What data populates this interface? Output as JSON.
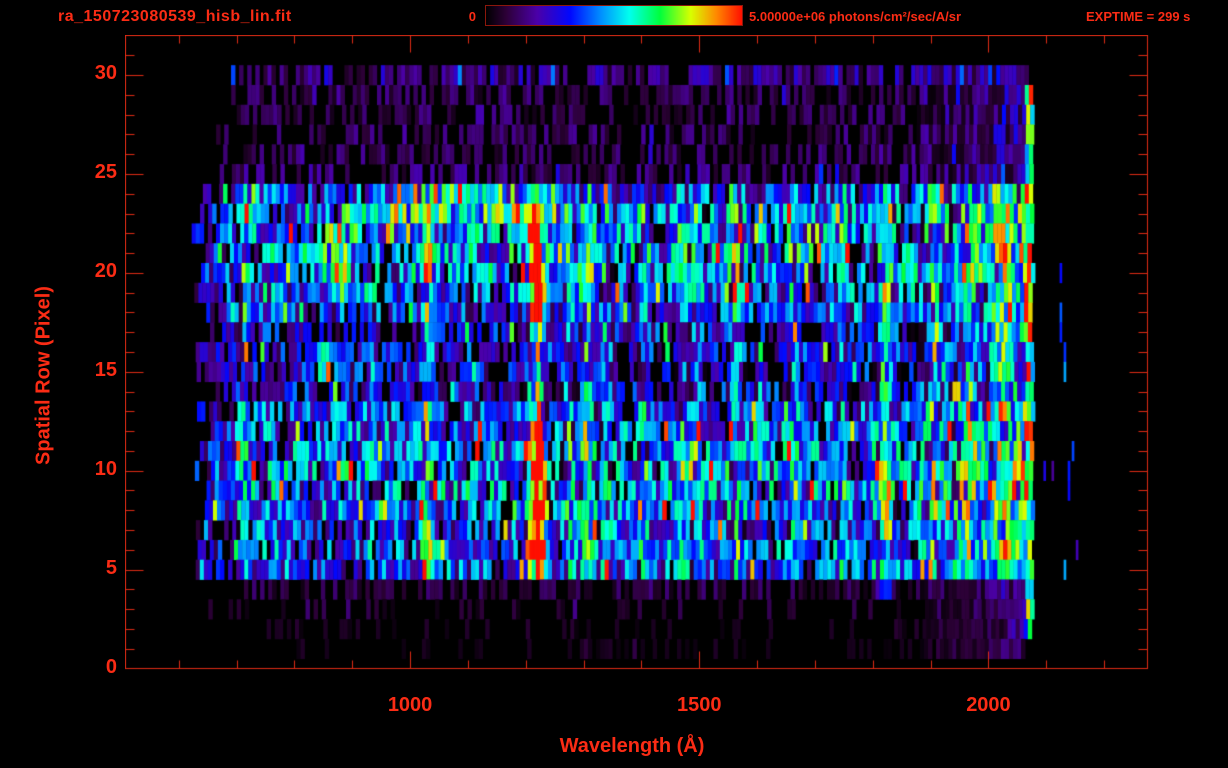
{
  "header": {
    "file_title": "ra_150723080539_hisb_lin.fit",
    "colorbar_min_label": "0",
    "colorbar_max_label": "5.00000e+06 photons/cm²/sec/A/sr",
    "exptime_label": "EXPTIME = 299 s"
  },
  "colors": {
    "text": "#fb2c15",
    "frame": "#e02b14",
    "background": "#000000",
    "colorbar_border": "#8c170c"
  },
  "chart_data": {
    "type": "heatmap",
    "title": "ra_150723080539_hisb_lin.fit",
    "xlabel": "Wavelength (Å)",
    "ylabel": "Spatial Row (Pixel)",
    "xlim": [
      508,
      2275
    ],
    "ylim": [
      0,
      32
    ],
    "x_major_ticks": [
      1000,
      1500,
      2000
    ],
    "x_tick_labels": [
      "1000",
      "1500",
      "2000"
    ],
    "x_minor_tick_step": 100,
    "x_minor_tick_range": [
      600,
      2200
    ],
    "y_major_ticks": [
      0,
      5,
      10,
      15,
      20,
      25,
      30
    ],
    "y_tick_labels": [
      "0",
      "5",
      "10",
      "15",
      "20",
      "25",
      "30"
    ],
    "y_minor_tick_step": 1,
    "grid": false,
    "legend": "none",
    "exposure_time_s": 299,
    "colorbar": {
      "min_value": 0,
      "max_value": 5000000,
      "min_label": "0",
      "max_label": "5.00000e+06",
      "units": "photons/cm²/sec/A/sr",
      "colormap_stops": [
        [
          0.0,
          "#000000"
        ],
        [
          0.08,
          "#2d0038"
        ],
        [
          0.2,
          "#4b00a8"
        ],
        [
          0.33,
          "#0008ff"
        ],
        [
          0.45,
          "#0090ff"
        ],
        [
          0.56,
          "#00ffee"
        ],
        [
          0.68,
          "#00ff3c"
        ],
        [
          0.8,
          "#d8ff00"
        ],
        [
          0.9,
          "#ff8800"
        ],
        [
          1.0,
          "#ff0f00"
        ]
      ]
    },
    "spatial_rows": {
      "count": 31,
      "data_rows": [
        1,
        30
      ],
      "bright_band_rows": [
        5,
        24
      ]
    },
    "wavelength_coverage": [
      620,
      2075
    ],
    "row_base_intensity": [
      0,
      0.03,
      0.04,
      0.06,
      0.08,
      0.3,
      0.33,
      0.3,
      0.35,
      0.37,
      0.38,
      0.36,
      0.33,
      0.3,
      0.24,
      0.24,
      0.26,
      0.24,
      0.28,
      0.33,
      0.37,
      0.37,
      0.35,
      0.33,
      0.3,
      0.12,
      0.1,
      0.1,
      0.095,
      0.095,
      0.15
    ],
    "emission_lines": [
      {
        "wl": 710,
        "sigma": 5,
        "strength": 0.18,
        "rows": [
          5,
          24
        ]
      },
      {
        "wl": 930,
        "sigma": 5,
        "strength": 0.15,
        "rows": [
          13,
          19
        ]
      },
      {
        "wl": 1026,
        "sigma": 7,
        "strength": 0.3,
        "rows": [
          5,
          23
        ]
      },
      {
        "wl": 1216,
        "sigma": 9,
        "strength": 0.92,
        "rows": [
          5,
          24
        ],
        "core_rows": [
          [
            6,
            12
          ],
          [
            18,
            23
          ]
        ],
        "wing_factor": 0.5
      },
      {
        "wl": 1270,
        "sigma": 6,
        "strength": 0.2,
        "rows": [
          5,
          24
        ]
      },
      {
        "wl": 1304,
        "sigma": 8,
        "strength": 0.32,
        "rows": [
          5,
          24
        ]
      },
      {
        "wl": 1335,
        "sigma": 5,
        "strength": 0.22,
        "rows": [
          5,
          24
        ]
      },
      {
        "wl": 1400,
        "sigma": 6,
        "strength": 0.16,
        "rows": [
          5,
          24
        ]
      },
      {
        "wl": 1470,
        "sigma": 6,
        "strength": 0.18,
        "rows": [
          5,
          24
        ]
      },
      {
        "wl": 1493,
        "sigma": 6,
        "strength": 0.22,
        "rows": [
          5,
          24
        ]
      },
      {
        "wl": 1561,
        "sigma": 7,
        "strength": 0.24,
        "rows": [
          5,
          24
        ]
      },
      {
        "wl": 1660,
        "sigma": 6,
        "strength": 0.16,
        "rows": [
          5,
          24
        ]
      },
      {
        "wl": 1745,
        "sigma": 6,
        "strength": 0.16,
        "rows": [
          5,
          24
        ]
      },
      {
        "wl": 1820,
        "sigma": 9,
        "strength": 0.34,
        "rows": [
          4,
          24
        ]
      },
      {
        "wl": 1900,
        "sigma": 8,
        "strength": 0.18,
        "rows": [
          5,
          24
        ]
      },
      {
        "wl": 1960,
        "sigma": 8,
        "strength": 0.2,
        "rows": [
          5,
          24
        ]
      },
      {
        "wl": 2020,
        "sigma": 8,
        "strength": 0.22,
        "rows": [
          5,
          24
        ]
      },
      {
        "wl": 2068,
        "sigma": 4.5,
        "strength": 0.85,
        "rows": [
          2,
          29
        ],
        "edge": true
      }
    ],
    "bright_region": {
      "wavelength_range": [
        1850,
        2063
      ],
      "max_boost": 0.22
    },
    "features": [
      {
        "row": 24,
        "wl_range": [
          1015,
          1205
        ],
        "boost": 0.22
      },
      {
        "row": 23,
        "wl_range": [
          868,
          1205
        ],
        "boost": 0.26
      },
      {
        "row": 22,
        "wl_range": [
          852,
          912
        ],
        "boost": 0.3
      },
      {
        "row": 22,
        "wl_range": [
          950,
          1000
        ],
        "boost": 0.24
      },
      {
        "row": 21,
        "wl_range": [
          840,
          896
        ],
        "boost": 0.32
      },
      {
        "row": 20,
        "wl_range": [
          846,
          886
        ],
        "boost": 0.3
      },
      {
        "row": 20,
        "wl_range": [
          993,
          1028
        ],
        "boost": 0.22
      },
      {
        "row": 19,
        "wl_range": [
          858,
          890
        ],
        "boost": 0.22
      },
      {
        "row": 16,
        "wl_range": [
          838,
          856
        ],
        "boost": 0.42
      },
      {
        "row": 15,
        "wl_range": [
          838,
          856
        ],
        "boost": 0.42
      },
      {
        "row": 6,
        "wl_range": [
          1192,
          1235
        ],
        "boost": 0.2
      },
      {
        "row": 5,
        "wl_range": [
          1192,
          1240
        ],
        "boost": 0.25
      }
    ],
    "render": {
      "seed": 20150723,
      "cell_wavelength_step": 7,
      "tail_wavelength_range": [
        2074,
        2160
      ],
      "tail_probability": 0.06
    }
  }
}
